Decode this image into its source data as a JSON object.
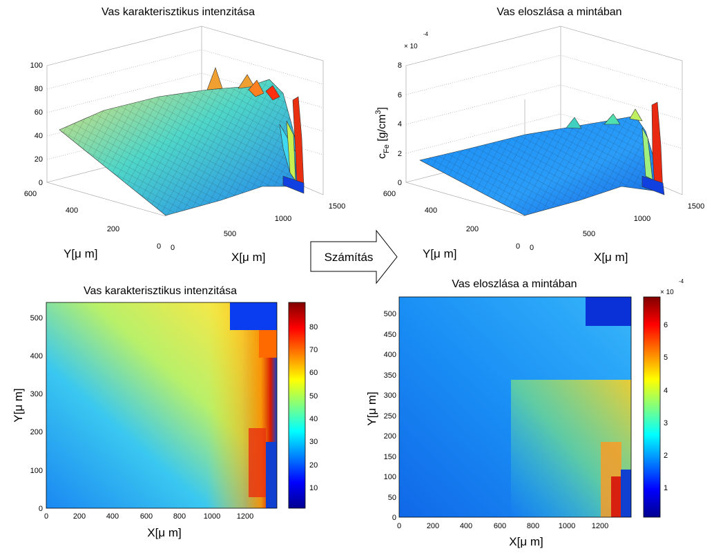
{
  "arrow": {
    "label": "Számítás"
  },
  "chart_data": [
    {
      "type": "surface",
      "title": "Vas karakterisztikus intenzitása",
      "xlabel": "X[μ m]",
      "ylabel": "Y[μ m]",
      "xlim": [
        0,
        1500
      ],
      "ylim": [
        0,
        600
      ],
      "zlim": [
        0,
        100
      ],
      "x_ticks": [
        "0",
        "500",
        "1000",
        "1500"
      ],
      "y_ticks": [
        "0",
        "200",
        "400",
        "600"
      ],
      "z_ticks": [
        "0",
        "20",
        "40",
        "60",
        "80",
        "100"
      ],
      "grid": true
    },
    {
      "type": "surface",
      "title": "Vas eloszlása a mintában",
      "xlabel": "X[μ m]",
      "zlabel_main": "c",
      "zlabel_sub": "Fe",
      "zlabel_rest": " [g/cm",
      "zlabel_sup": "3",
      "zlabel_end": "]",
      "exponent_base": "× 10",
      "exponent_power": "-4",
      "ylabel": "Y[μ m]",
      "xlim": [
        0,
        1500
      ],
      "ylim": [
        0,
        600
      ],
      "zlim": [
        0,
        8
      ],
      "x_ticks": [
        "0",
        "500",
        "1000",
        "1500"
      ],
      "y_ticks": [
        "0",
        "200",
        "400",
        "600"
      ],
      "z_ticks": [
        "0",
        "2",
        "4",
        "6",
        "8"
      ],
      "grid": true
    },
    {
      "type": "heatmap",
      "title": "Vas karakterisztikus intenzitása",
      "xlabel": "X[μ m]",
      "ylabel": "Y[μ m]",
      "xlim": [
        0,
        1380
      ],
      "ylim": [
        0,
        540
      ],
      "x_ticks": [
        "0",
        "200",
        "400",
        "600",
        "800",
        "1000",
        "1200"
      ],
      "y_ticks": [
        "0",
        "100",
        "200",
        "300",
        "400",
        "500"
      ],
      "colorbar_ticks": [
        "10",
        "20",
        "30",
        "40",
        "50",
        "60",
        "70",
        "80"
      ],
      "colorbar_range": [
        1,
        90
      ],
      "colormap": "jet"
    },
    {
      "type": "heatmap",
      "title": "Vas eloszlása a mintában",
      "xlabel": "X[μ m]",
      "ylabel": "Y[μ m]",
      "xlim": [
        0,
        1380
      ],
      "ylim": [
        0,
        540
      ],
      "x_ticks": [
        "0",
        "200",
        "400",
        "600",
        "800",
        "1000",
        "1200"
      ],
      "y_ticks": [
        "0",
        "50",
        "100",
        "150",
        "200",
        "250",
        "300",
        "350",
        "400",
        "450",
        "500"
      ],
      "colorbar_ticks": [
        "1",
        "2",
        "3",
        "4",
        "5",
        "6"
      ],
      "colorbar_range": [
        0.2,
        6.9
      ],
      "exponent_base": "× 10",
      "exponent_power": "-4",
      "colormap": "jet"
    }
  ]
}
